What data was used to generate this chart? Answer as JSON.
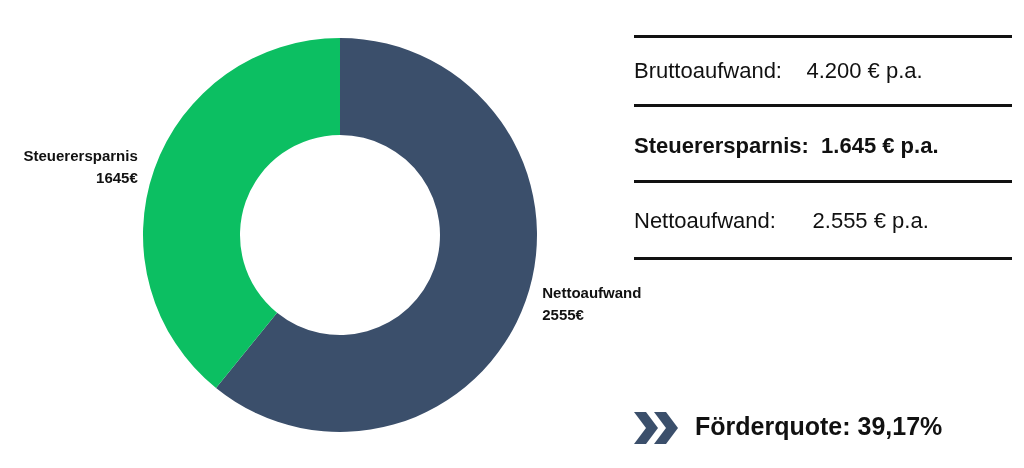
{
  "chart_data": {
    "type": "donut",
    "categories": [
      "Nettoaufwand",
      "Steuerersparnis"
    ],
    "values": [
      2555,
      1645
    ],
    "colors": [
      "#3b4f6b",
      "#0cbf62"
    ],
    "value_labels": [
      "2555€",
      "1645€"
    ],
    "legend": false,
    "annotations": [
      "Bruttoaufwand:    4.200 € p.a.",
      "Steuerersparnis:  1.645 € p.a.",
      "Nettoaufwand:      2.555 € p.a.",
      "Förderquote: 39,17%"
    ]
  }
}
